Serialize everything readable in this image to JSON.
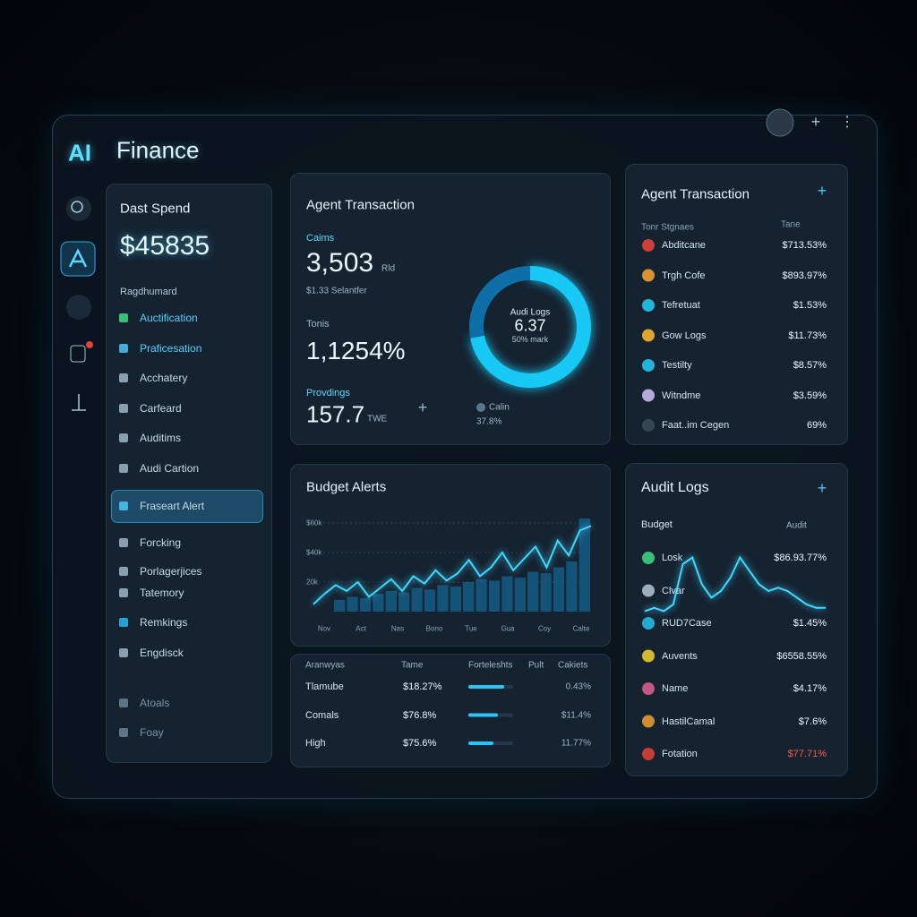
{
  "header": {
    "brand": "AI",
    "title": "Finance"
  },
  "sidebar": {
    "title": "Dast Spend",
    "amount": "$45835",
    "section": "Ragdhumard",
    "items": [
      "Auctification",
      "Praficesation",
      "Acchatery",
      "Carfeard",
      "Auditims",
      "Audi Cartion",
      "Fraseart Alert",
      "Forcking",
      "Porlagerjices",
      "Tatemory",
      "Remkings",
      "Engdisck",
      "Atoals",
      "Foay"
    ]
  },
  "transaction": {
    "title": "Agent Transaction",
    "m1_label": "Caims",
    "m1_value": "3,503",
    "m1_unit": "Rld",
    "m1_sub": "$1.33 Selantfer",
    "m2_label": "Tonis",
    "m2_value": "1,1254%",
    "m3_label": "Provdings",
    "m3_value": "157.7",
    "m3_unit": "TWE",
    "donut": {
      "label": "Audi Logs",
      "value": "6.37",
      "sub": "50% mark",
      "segments": [
        72,
        28
      ]
    },
    "legend_name": "Calin",
    "legend_value": "37.8%"
  },
  "agent_list": {
    "title": "Agent Transaction",
    "col1": "Tonr Stgnaes",
    "col2": "Tane",
    "rows": [
      {
        "name": "Abditcane",
        "value": "$713.53%"
      },
      {
        "name": "Trgh Cofe",
        "value": "$893.97%"
      },
      {
        "name": "Tefretuat",
        "value": "$1.53%"
      },
      {
        "name": "Gow Logs",
        "value": "$11.73%"
      },
      {
        "name": "Testilty",
        "value": "$8.57%"
      },
      {
        "name": "Witndme",
        "value": "$3.59%"
      },
      {
        "name": "Faat..im Cegen",
        "value": "69%"
      }
    ]
  },
  "budget": {
    "title": "Budget Alerts",
    "ylim": [
      0,
      80
    ],
    "yticks": [
      {
        "value": 60,
        "label": "$60k"
      },
      {
        "value": 40,
        "label": "$40k"
      },
      {
        "value": 20,
        "label": "20k"
      }
    ],
    "x_labels": [
      "Nov",
      "Act",
      "Nas",
      "Bono",
      "Tue",
      "Gua",
      "Coy",
      "Calte"
    ],
    "bars": [
      8,
      10,
      9,
      12,
      14,
      13,
      16,
      15,
      18,
      17,
      20,
      22,
      21,
      24,
      23,
      27,
      26,
      30,
      34,
      63
    ],
    "line": [
      5,
      12,
      18,
      14,
      20,
      10,
      16,
      22,
      14,
      24,
      19,
      28,
      21,
      26,
      35,
      24,
      30,
      40,
      28,
      36,
      44,
      30,
      48,
      38,
      55,
      58
    ]
  },
  "budget_table": {
    "headers": [
      "Aranwyas",
      "Tame",
      "Forteleshts",
      "Pult",
      "Cakiets"
    ],
    "rows": [
      {
        "name": "Tlamube",
        "value": "$18.27%",
        "change": "0.43%"
      },
      {
        "name": "Comals",
        "value": "$76.8%",
        "change": "$11.4%"
      },
      {
        "name": "High",
        "value": "$75.6%",
        "change": "11.77%"
      }
    ]
  },
  "audit": {
    "title": "Audit Logs",
    "col1": "Budget",
    "col2": "Audit",
    "rows": [
      {
        "name": "Losk",
        "value": "$86.93.77%"
      },
      {
        "name": "Clvar"
      },
      {
        "name": "RUD7Case",
        "value": "$1.45%"
      },
      {
        "name": "Auvents",
        "value": "$6558.55%"
      },
      {
        "name": "Name",
        "value": "$4.17%"
      },
      {
        "name": "HastilCamal",
        "value": "$7.6%"
      },
      {
        "name": "Fotation",
        "value": "$77.71%"
      }
    ],
    "trend_ylim": [
      0,
      10
    ],
    "trend": [
      1,
      1.5,
      1,
      2,
      8,
      9,
      5,
      3,
      4,
      6,
      9,
      7,
      5,
      4,
      4.5,
      4,
      3,
      2,
      1.5,
      1.5
    ]
  }
}
